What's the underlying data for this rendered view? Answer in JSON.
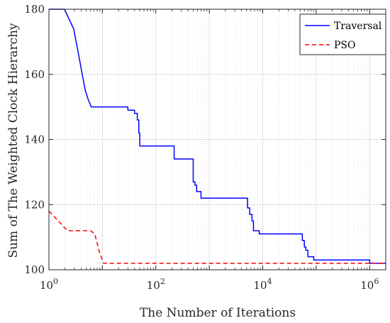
{
  "chart_data": {
    "type": "line",
    "xlabel": "The Number of Iterations",
    "ylabel": "Sum of The Weighted Clock Hierarchy",
    "xscale": "log",
    "xlim": [
      1,
      2000000
    ],
    "ylim": [
      100,
      180
    ],
    "grid": "on",
    "minor_grid": "on",
    "legend_placement": "top-right",
    "yticks": [
      100,
      120,
      140,
      160,
      180
    ],
    "ytick_labels": [
      "100",
      "120",
      "140",
      "160",
      "180"
    ],
    "xticks": [
      1,
      100,
      10000,
      1000000
    ],
    "xtick_base": [
      "10",
      "10",
      "10",
      "10"
    ],
    "xtick_exp": [
      "0",
      "2",
      "4",
      "6"
    ],
    "series": [
      {
        "name": "Traversal",
        "color": "#0000ff",
        "dash": "solid",
        "x": [
          1,
          1.95,
          2.9,
          3.6,
          4.2,
          4.8,
          5.5,
          6.2,
          30,
          30,
          40,
          40,
          45,
          45,
          48,
          48,
          50,
          50,
          220,
          220,
          500,
          500,
          540,
          540,
          580,
          580,
          700,
          700,
          5200,
          5200,
          5700,
          5700,
          6300,
          6300,
          6700,
          6700,
          8600,
          8600,
          55000,
          55000,
          60000,
          60000,
          64000,
          64000,
          70000,
          70000,
          90000,
          90000,
          1000000,
          1000000,
          2000000
        ],
        "y": [
          180,
          180,
          174,
          166,
          160,
          155,
          152,
          150,
          150,
          149,
          149,
          148,
          148,
          146,
          146,
          142,
          142,
          138,
          138,
          134,
          134,
          127,
          127,
          126,
          126,
          124,
          124,
          122,
          122,
          119,
          119,
          117,
          117,
          115,
          115,
          112,
          112,
          111,
          111,
          109,
          109,
          107,
          107,
          106,
          106,
          104,
          104,
          103,
          103,
          102,
          102
        ]
      },
      {
        "name": "PSO",
        "color": "#ff0000",
        "dash": "dashed",
        "x": [
          1,
          1.5,
          2.2,
          6.0,
          7.2,
          8.6,
          10.5,
          2000000
        ],
        "y": [
          118,
          115,
          112,
          112,
          111,
          106,
          102,
          102
        ]
      }
    ]
  }
}
